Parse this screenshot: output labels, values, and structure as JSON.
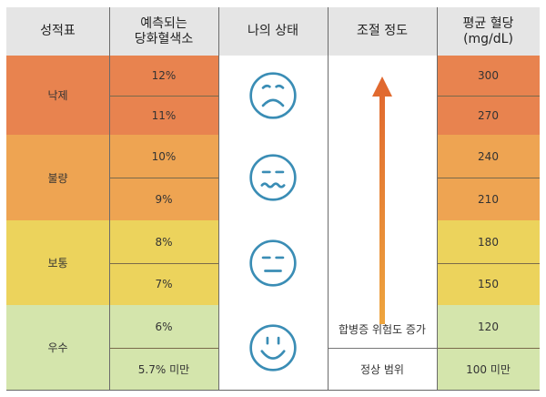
{
  "headers": [
    "성적표",
    "예측되는\n당화혈색소",
    "나의 상태",
    "조절 정도",
    "평균 혈당\n(mg/dL)"
  ],
  "colors": {
    "header": "#e5e5e5",
    "poor": "#e8834f",
    "bad": "#eea452",
    "normal": "#ecd35c",
    "good": "#d4e5ac",
    "face": "#3a8db5"
  },
  "rows": [
    {
      "grade": "낙제",
      "state_icon": "sad-face-icon",
      "a1c": [
        "12%",
        "11%"
      ],
      "glucose": [
        "300",
        "270"
      ]
    },
    {
      "grade": "불량",
      "state_icon": "queasy-face-icon",
      "a1c": [
        "10%",
        "9%"
      ],
      "glucose": [
        "240",
        "210"
      ]
    },
    {
      "grade": "보통",
      "state_icon": "neutral-face-icon",
      "a1c": [
        "8%",
        "7%"
      ],
      "glucose": [
        "180",
        "150"
      ]
    },
    {
      "grade": "우수",
      "state_icon": "smile-face-icon",
      "a1c": [
        "6%",
        "5.7% 미만"
      ],
      "glucose": [
        "120",
        "100 미만"
      ]
    }
  ],
  "control": {
    "arrow_label": "합병증 위험도 증가",
    "normal_label": "정상 범위"
  }
}
